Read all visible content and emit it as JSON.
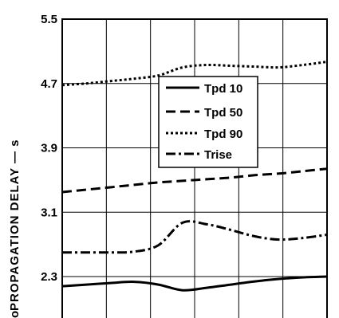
{
  "chart_data": {
    "type": "line",
    "ylabel": "PROPAGATION DELAY —  s",
    "ylabel_fragment": "o",
    "ylim": [
      2.3,
      5.5
    ],
    "yticks": [
      "5.5",
      "4.7",
      "3.9",
      "3.1",
      "2.3"
    ],
    "x": [
      0,
      1,
      2,
      3,
      4,
      5,
      6,
      7,
      8,
      9,
      10,
      11
    ],
    "grid": true,
    "legend_position": "upper-right",
    "series": [
      {
        "name": "Tpd 10",
        "style": "solid",
        "values": [
          2.18,
          2.2,
          2.22,
          2.235,
          2.2,
          2.13,
          2.16,
          2.2,
          2.24,
          2.27,
          2.29,
          2.3
        ]
      },
      {
        "name": "Tpd 50",
        "style": "dashed",
        "values": [
          3.35,
          3.38,
          3.41,
          3.44,
          3.47,
          3.49,
          3.51,
          3.53,
          3.56,
          3.58,
          3.61,
          3.64
        ]
      },
      {
        "name": "Tpd 90",
        "style": "dotted",
        "values": [
          4.68,
          4.7,
          4.73,
          4.76,
          4.8,
          4.9,
          4.93,
          4.92,
          4.91,
          4.9,
          4.93,
          4.97
        ]
      },
      {
        "name": "Trise",
        "style": "dashdot",
        "values": [
          2.6,
          2.6,
          2.6,
          2.61,
          2.69,
          2.97,
          2.95,
          2.88,
          2.8,
          2.76,
          2.78,
          2.82
        ]
      }
    ]
  }
}
